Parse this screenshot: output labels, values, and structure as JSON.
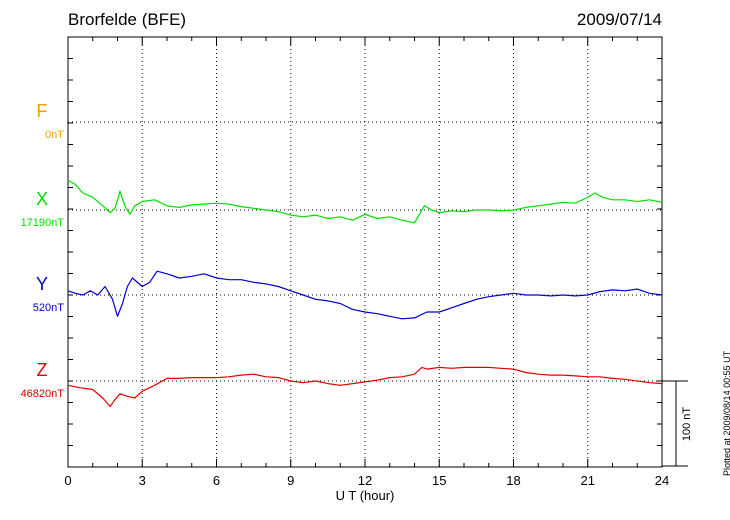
{
  "header": {
    "station": "Brorfelde (BFE)",
    "date": "2009/07/14"
  },
  "footer_note": "Plotted at 2009/08/14 00:55 UT",
  "scale_label": "100 nT",
  "chart_data": {
    "type": "line",
    "title": "Brorfelde (BFE)",
    "xlabel": "U T (hour)",
    "ylabel": "",
    "xlim": [
      0,
      24
    ],
    "xticks": [
      "0",
      "3",
      "6",
      "9",
      "12",
      "15",
      "18",
      "21",
      "24"
    ],
    "grid": true,
    "scale_bar_nT": 100,
    "series": [
      {
        "name": "F",
        "baseline_label": "0nT",
        "color": "#f0a000",
        "x": [],
        "values": []
      },
      {
        "name": "X",
        "baseline_label": "17190nT",
        "color": "#00e000",
        "x": [
          0,
          0.3,
          0.6,
          1.0,
          1.4,
          1.7,
          1.9,
          2.1,
          2.3,
          2.5,
          2.7,
          3.0,
          3.5,
          4.0,
          4.5,
          5.0,
          5.5,
          6.0,
          6.5,
          7.0,
          7.5,
          8.0,
          8.5,
          9.0,
          9.5,
          10.0,
          10.5,
          11.0,
          11.5,
          12.0,
          12.5,
          13.0,
          13.5,
          14.0,
          14.2,
          14.4,
          14.7,
          15.0,
          15.5,
          16.0,
          16.5,
          17.0,
          17.5,
          18.0,
          18.5,
          19.0,
          19.5,
          20.0,
          20.5,
          21.0,
          21.3,
          21.6,
          22.0,
          22.5,
          23.0,
          23.5,
          24.0
        ],
        "values": [
          35,
          30,
          20,
          15,
          5,
          -3,
          2,
          22,
          5,
          -5,
          5,
          10,
          12,
          5,
          3,
          6,
          7,
          8,
          7,
          4,
          2,
          0,
          -2,
          -6,
          -8,
          -6,
          -10,
          -8,
          -12,
          -5,
          -10,
          -8,
          -12,
          -15,
          -5,
          5,
          0,
          -3,
          -1,
          -2,
          0,
          0,
          -1,
          0,
          3,
          5,
          7,
          9,
          8,
          15,
          20,
          15,
          12,
          12,
          10,
          12,
          9
        ]
      },
      {
        "name": "Y",
        "baseline_label": "520nT",
        "color": "#0000d0",
        "x": [
          0,
          0.3,
          0.6,
          0.9,
          1.2,
          1.5,
          1.8,
          2.0,
          2.2,
          2.4,
          2.6,
          3.0,
          3.3,
          3.6,
          4.0,
          4.5,
          5.0,
          5.5,
          6.0,
          6.5,
          7.0,
          7.5,
          8.0,
          8.5,
          9.0,
          9.5,
          10.0,
          10.5,
          11.0,
          11.5,
          12.0,
          12.5,
          13.0,
          13.5,
          14.0,
          14.5,
          15.0,
          15.5,
          16.0,
          16.5,
          17.0,
          17.5,
          18.0,
          18.5,
          19.0,
          19.5,
          20.0,
          20.5,
          21.0,
          21.5,
          22.0,
          22.5,
          23.0,
          23.5,
          24.0
        ],
        "values": [
          5,
          2,
          0,
          5,
          0,
          10,
          -5,
          -25,
          -10,
          10,
          20,
          10,
          15,
          28,
          25,
          20,
          22,
          25,
          20,
          18,
          18,
          15,
          13,
          10,
          5,
          0,
          -5,
          -7,
          -10,
          -17,
          -20,
          -22,
          -25,
          -28,
          -27,
          -20,
          -20,
          -15,
          -10,
          -5,
          -2,
          0,
          2,
          0,
          0,
          -1,
          0,
          -1,
          0,
          4,
          6,
          5,
          7,
          2,
          0
        ]
      },
      {
        "name": "Z",
        "baseline_label": "46820nT",
        "color": "#e00000",
        "x": [
          0,
          0.5,
          1.0,
          1.4,
          1.7,
          1.9,
          2.1,
          2.4,
          2.7,
          3.0,
          3.5,
          4.0,
          4.5,
          5.0,
          5.5,
          6.0,
          6.5,
          7.0,
          7.5,
          8.0,
          8.5,
          9.0,
          9.5,
          10.0,
          10.5,
          11.0,
          11.5,
          12.0,
          12.5,
          13.0,
          13.5,
          14.0,
          14.3,
          14.5,
          15.0,
          15.5,
          16.0,
          16.5,
          17.0,
          17.5,
          18.0,
          18.5,
          19.0,
          19.5,
          20.0,
          20.5,
          21.0,
          21.5,
          22.0,
          22.5,
          23.0,
          23.5,
          24.0
        ],
        "values": [
          -5,
          -8,
          -10,
          -20,
          -30,
          -22,
          -15,
          -18,
          -20,
          -12,
          -5,
          3,
          3,
          4,
          4,
          4,
          5,
          7,
          8,
          5,
          4,
          0,
          -2,
          0,
          -3,
          -5,
          -3,
          -1,
          1,
          4,
          5,
          8,
          16,
          14,
          16,
          15,
          16,
          16,
          16,
          15,
          14,
          10,
          8,
          7,
          7,
          6,
          5,
          5,
          3,
          2,
          0,
          -2,
          -3
        ]
      }
    ]
  }
}
